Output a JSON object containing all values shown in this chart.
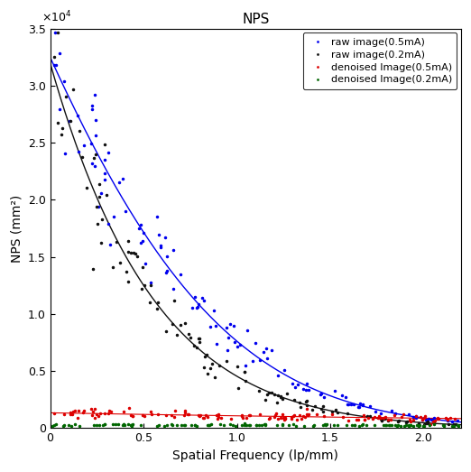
{
  "title": "NPS",
  "xlabel": "Spatial Frequency (lp/mm)",
  "ylabel": "NPS (mm²)",
  "ylim": [
    0,
    35000.0
  ],
  "xlim": [
    0,
    2.2
  ],
  "legend_entries": [
    "raw image(0.5mA)",
    "raw image(0.2mA)",
    "denoised Image(0.5mA)",
    "denoised Image(0.2mA)"
  ],
  "colors": {
    "blue": "#0000EE",
    "black": "#111111",
    "red": "#DD0000",
    "green": "#006600"
  },
  "yticks": [
    0,
    0.5,
    1.0,
    1.5,
    2.0,
    2.5,
    3.0,
    3.5
  ],
  "xticks": [
    0,
    0.5,
    1.0,
    1.5,
    2.0
  ]
}
